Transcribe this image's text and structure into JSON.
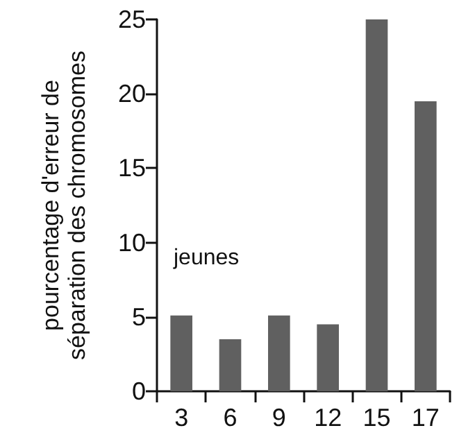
{
  "chart_data": {
    "type": "bar",
    "ylabel": "pourcentage d'erreur de\nséparation des chromosomes",
    "categories": [
      "3",
      "6",
      "9",
      "12",
      "15",
      "17"
    ],
    "values": [
      5.1,
      3.5,
      5.1,
      4.5,
      25,
      19.5
    ],
    "color": "#606060",
    "ylim": [
      0,
      25
    ],
    "yticks": [
      0,
      5,
      10,
      15,
      20,
      25
    ],
    "grid": false,
    "annotations": [
      "jeunes"
    ]
  }
}
